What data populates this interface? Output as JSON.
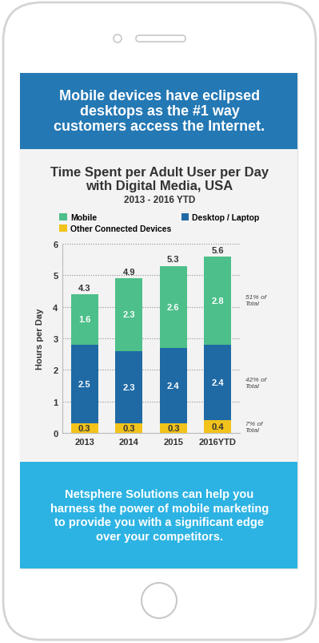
{
  "header": "Mobile devices have eclipsed\ndesktops as the #1 way\ncustomers access the Internet.",
  "chart_data": {
    "type": "bar",
    "stacked": true,
    "title": "Time Spent per Adult User per Day\nwith Digital Media, USA",
    "subtitle": "2013 - 2016 YTD",
    "y_label": "Hours per Day",
    "categories": [
      "2013",
      "2014",
      "2015",
      "2016YTD"
    ],
    "series": [
      {
        "name": "Mobile",
        "color": "#4dbf8a",
        "values": [
          1.6,
          2.3,
          2.6,
          2.8
        ],
        "annotation": "51% of\nTotal"
      },
      {
        "name": "Desktop / Laptop",
        "color": "#1f6aa5",
        "values": [
          2.5,
          2.3,
          2.4,
          2.4
        ],
        "annotation": "42% of\nTotal"
      },
      {
        "name": "Other Connected Devices",
        "color": "#f2c31b",
        "values": [
          0.3,
          0.3,
          0.3,
          0.4
        ],
        "annotation": "7% of\nTotal"
      }
    ],
    "totals": [
      4.3,
      4.9,
      5.3,
      5.6
    ],
    "ylim": [
      0,
      6
    ],
    "yticks": [
      0,
      1,
      2,
      3,
      4,
      5,
      6
    ],
    "grid": true,
    "legend": "upper center",
    "data_labels": true
  },
  "footer": "Netsphere Solutions can help you\nharness the power of mobile marketing\nto provide you with a significant edge\nover your competitors."
}
